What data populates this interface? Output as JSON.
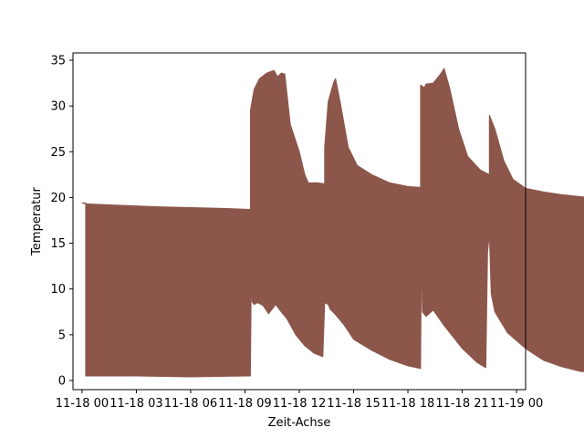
{
  "chart_data": {
    "type": "area",
    "title": "",
    "xlabel": "Zeit-Achse",
    "ylabel": "Temperatur",
    "xlim": [
      -0.5,
      24.5
    ],
    "ylim": [
      -1.0,
      35.8
    ],
    "grid": false,
    "x_ticks": [
      {
        "value": 0,
        "label": "11-18 00"
      },
      {
        "value": 3,
        "label": "11-18 03"
      },
      {
        "value": 6,
        "label": "11-18 06"
      },
      {
        "value": 9,
        "label": "11-18 09"
      },
      {
        "value": 12,
        "label": "11-18 12"
      },
      {
        "value": 15,
        "label": "11-18 15"
      },
      {
        "value": 18,
        "label": "11-18 18"
      },
      {
        "value": 21,
        "label": "11-18 21"
      },
      {
        "value": 24,
        "label": "11-19 00"
      }
    ],
    "y_ticks": [
      {
        "value": 0,
        "label": "0"
      },
      {
        "value": 5,
        "label": "5"
      },
      {
        "value": 10,
        "label": "10"
      },
      {
        "value": 15,
        "label": "15"
      },
      {
        "value": 20,
        "label": "20"
      },
      {
        "value": 25,
        "label": "25"
      },
      {
        "value": 30,
        "label": "30"
      },
      {
        "value": 35,
        "label": "35"
      }
    ],
    "series": [
      {
        "name": "Temperatur",
        "color": "#8c564b",
        "upper": [
          [
            0.0,
            19.4
          ],
          [
            0.2,
            19.4
          ],
          [
            0.2,
            19.3
          ],
          [
            1.5,
            19.2
          ],
          [
            4.0,
            19.0
          ],
          [
            6.0,
            18.9
          ],
          [
            8.0,
            18.8
          ],
          [
            9.3,
            18.7
          ],
          [
            9.3,
            29.5
          ],
          [
            9.5,
            31.8
          ],
          [
            9.8,
            33.0
          ],
          [
            10.2,
            33.6
          ],
          [
            10.6,
            33.9
          ],
          [
            10.8,
            33.2
          ],
          [
            11.0,
            33.6
          ],
          [
            11.2,
            33.5
          ],
          [
            11.5,
            28.0
          ],
          [
            12.0,
            25.0
          ],
          [
            12.3,
            22.5
          ],
          [
            12.5,
            21.6
          ],
          [
            13.0,
            21.6
          ],
          [
            13.4,
            21.5
          ],
          [
            13.4,
            25.5
          ],
          [
            13.6,
            30.5
          ],
          [
            13.9,
            32.6
          ],
          [
            14.0,
            33.0
          ],
          [
            14.3,
            30.0
          ],
          [
            14.7,
            25.5
          ],
          [
            15.2,
            23.5
          ],
          [
            16.0,
            22.5
          ],
          [
            17.0,
            21.6
          ],
          [
            18.0,
            21.2
          ],
          [
            18.7,
            21.1
          ],
          [
            18.7,
            32.3
          ],
          [
            18.9,
            32.0
          ],
          [
            19.0,
            32.4
          ],
          [
            19.4,
            32.5
          ],
          [
            19.8,
            33.5
          ],
          [
            20.0,
            34.1
          ],
          [
            20.3,
            32.0
          ],
          [
            20.8,
            27.5
          ],
          [
            21.3,
            24.5
          ],
          [
            22.0,
            23.0
          ],
          [
            22.5,
            22.5
          ],
          [
            22.5,
            29.0
          ],
          [
            22.8,
            27.5
          ],
          [
            23.3,
            24.0
          ],
          [
            23.8,
            22.0
          ],
          [
            24.5,
            21.0
          ],
          [
            25.5,
            20.6
          ],
          [
            26.5,
            20.3
          ],
          [
            28.0,
            20.0
          ],
          [
            29.0,
            19.8
          ],
          [
            29.2,
            19.7
          ]
        ],
        "lower": [
          [
            29.2,
            0.7
          ],
          [
            28.5,
            0.8
          ],
          [
            27.5,
            1.0
          ],
          [
            26.5,
            1.5
          ],
          [
            25.5,
            2.2
          ],
          [
            24.5,
            3.5
          ],
          [
            23.5,
            5.2
          ],
          [
            22.8,
            7.5
          ],
          [
            22.6,
            9.5
          ],
          [
            22.5,
            16.0
          ],
          [
            22.4,
            14.0
          ],
          [
            22.3,
            1.4
          ],
          [
            21.8,
            2.0
          ],
          [
            21.0,
            3.5
          ],
          [
            20.0,
            6.0
          ],
          [
            19.4,
            7.7
          ],
          [
            19.0,
            7.0
          ],
          [
            18.8,
            7.5
          ],
          [
            18.75,
            15.0
          ],
          [
            18.7,
            1.3
          ],
          [
            18.0,
            1.6
          ],
          [
            17.0,
            2.3
          ],
          [
            16.0,
            3.3
          ],
          [
            15.0,
            4.5
          ],
          [
            14.5,
            6.0
          ],
          [
            14.0,
            7.2
          ],
          [
            13.7,
            7.8
          ],
          [
            13.6,
            8.3
          ],
          [
            13.4,
            8.5
          ],
          [
            13.3,
            2.6
          ],
          [
            12.8,
            3.0
          ],
          [
            12.3,
            3.8
          ],
          [
            11.8,
            5.0
          ],
          [
            11.3,
            6.8
          ],
          [
            11.0,
            7.5
          ],
          [
            10.7,
            8.3
          ],
          [
            10.3,
            7.3
          ],
          [
            10.0,
            8.2
          ],
          [
            9.7,
            8.5
          ],
          [
            9.5,
            8.3
          ],
          [
            9.4,
            8.6
          ],
          [
            9.35,
            11.5
          ],
          [
            9.3,
            0.5
          ],
          [
            6.0,
            0.4
          ],
          [
            3.0,
            0.5
          ],
          [
            0.2,
            0.5
          ],
          [
            0.2,
            19.3
          ],
          [
            0.0,
            19.4
          ]
        ]
      }
    ]
  }
}
